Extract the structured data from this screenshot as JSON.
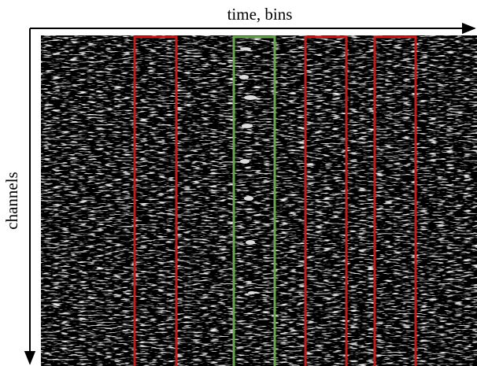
{
  "x_axis_label": "time, bins",
  "y_axis_label": "channels"
}
